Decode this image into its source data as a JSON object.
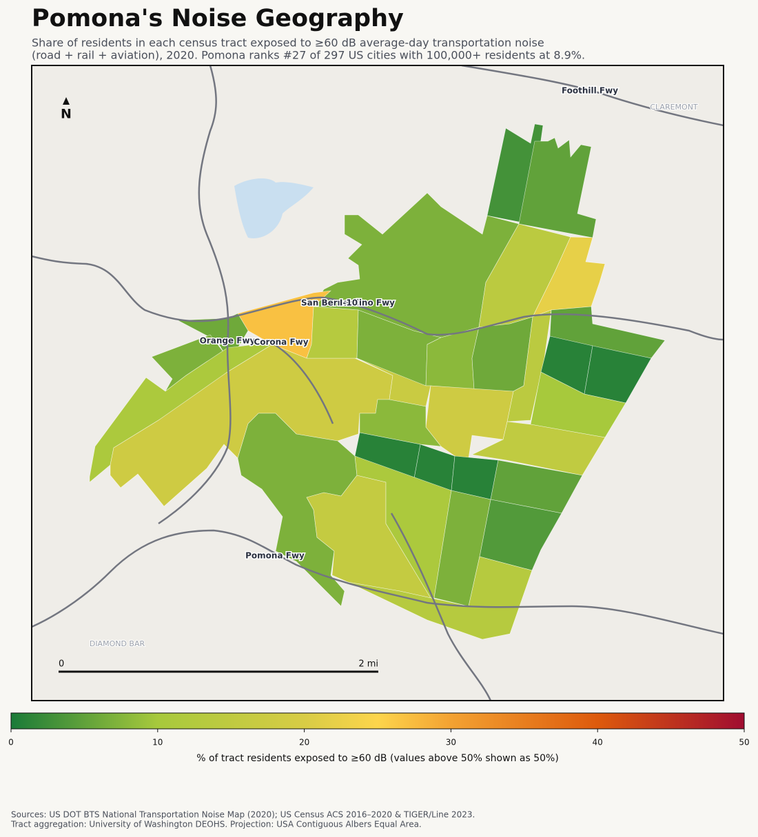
{
  "title": "Pomona's Noise Geography",
  "subtitle": [
    "Share of residents in each census tract exposed to ≥60 dB average-day transportation noise",
    "(road + rail + aviation), 2020. Pomona ranks #27 of 297 US cities with 100,000+ residents at 8.9%."
  ],
  "map": {
    "labels": {
      "foothill": "Foothill Fwy",
      "claremont": "CLAREMONT",
      "san_bernardino": "San Bernardino Fwy",
      "i10": "I-10",
      "orange": "Orange Fwy",
      "corona": "Corona Fwy",
      "pomona": "Pomona Fwy",
      "diamond_bar": "DIAMOND BAR"
    },
    "north": "N",
    "scale_bar": {
      "start": "0",
      "end": "2 mi"
    },
    "tracts": {
      "values": [
        3,
        5,
        7,
        14,
        22,
        27,
        6,
        7,
        11,
        18,
        13,
        7,
        8,
        6,
        14,
        5,
        1,
        1,
        10,
        15,
        18,
        17,
        8,
        1,
        1,
        1,
        5,
        4,
        7,
        16,
        11,
        7,
        13
      ]
    }
  },
  "colorbar": {
    "lim": [
      0,
      50
    ],
    "ticks": [
      0,
      10,
      20,
      30,
      40,
      50
    ],
    "label": "% of tract residents exposed to ≥60 dB (values above 50% shown as 50%)"
  },
  "sources": [
    "Sources: US DOT BTS National Transportation Noise Map (2020); US Census ACS 2016–2020 & TIGER/Line 2023.",
    "Tract aggregation: University of Washington DEOHS. Projection: USA Contiguous Albers Equal Area."
  ]
}
